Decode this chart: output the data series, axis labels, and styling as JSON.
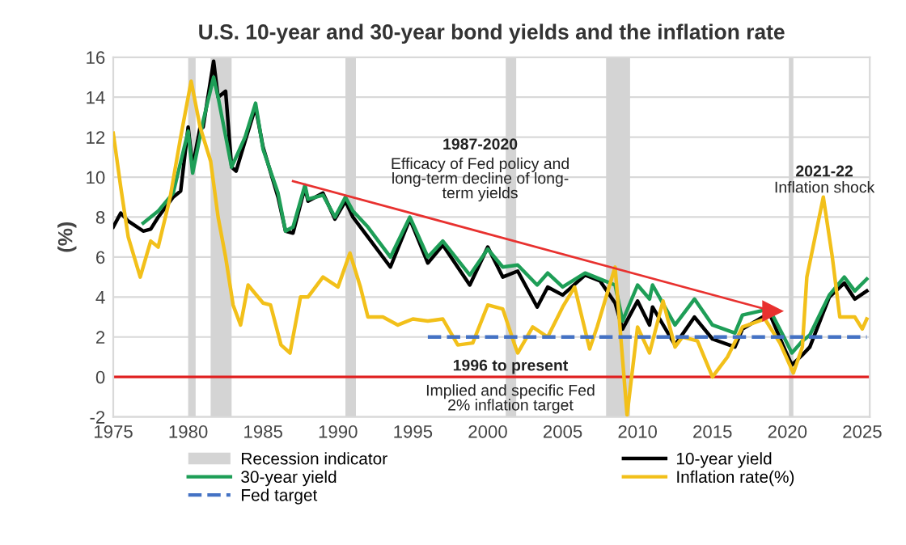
{
  "chart_data": {
    "type": "line",
    "title": "U.S. 10-year and 30-year bond yields and the inflation rate",
    "ylabel": "(%)",
    "xlim": [
      1975,
      2025.5
    ],
    "xticks": [
      1975,
      1980,
      1985,
      1990,
      1995,
      2000,
      2005,
      2010,
      2015,
      2020,
      2025
    ],
    "ylim": [
      -2,
      16
    ],
    "yticks": [
      -2,
      0,
      2,
      4,
      6,
      8,
      10,
      12,
      14,
      16
    ],
    "grid": "y",
    "legend": "bottom",
    "series": [
      {
        "name": "10-year yield",
        "color": "#000000",
        "x": [
          1975,
          1975.5,
          1976,
          1977,
          1977.5,
          1978,
          1979,
          1979.5,
          1980.0,
          1980.3,
          1980.8,
          1981.0,
          1981.7,
          1982,
          1982.5,
          1982.9,
          1983.2,
          1983.8,
          1984.5,
          1985,
          1986,
          1986.5,
          1987,
          1987.8,
          1988,
          1989,
          1989.8,
          1990.5,
          1991,
          1992,
          1993.5,
          1994.8,
          1996,
          1997,
          1998.8,
          2000,
          2001,
          2002,
          2003.3,
          2004,
          2005,
          2006.5,
          2007.5,
          2008.5,
          2009,
          2010,
          2010.8,
          2011,
          2012.5,
          2013.8,
          2015,
          2016.5,
          2017,
          2018.8,
          2019.7,
          2020.3,
          2021,
          2021.5,
          2022.8,
          2023.8,
          2024.5,
          2025.3
        ],
        "values": [
          7.5,
          8.2,
          7.8,
          7.3,
          7.4,
          8.0,
          9.0,
          9.3,
          12.5,
          10.5,
          12.5,
          12.5,
          15.8,
          14.0,
          14.3,
          10.5,
          10.3,
          11.8,
          13.5,
          11.5,
          9.0,
          7.3,
          7.2,
          9.5,
          8.8,
          9.2,
          7.9,
          8.8,
          8.0,
          7.0,
          5.5,
          7.9,
          5.7,
          6.6,
          4.6,
          6.5,
          5.0,
          5.3,
          3.5,
          4.5,
          4.1,
          5.1,
          4.8,
          3.7,
          2.4,
          3.8,
          2.6,
          3.5,
          1.6,
          3.0,
          1.9,
          1.5,
          2.4,
          3.2,
          1.6,
          0.6,
          1.1,
          1.5,
          4.0,
          4.7,
          3.9,
          4.3
        ]
      },
      {
        "name": "30-year yield",
        "color": "#1e9e57",
        "x": [
          1977,
          1978,
          1979,
          1980,
          1980.3,
          1981,
          1981.7,
          1982,
          1982.9,
          1983.8,
          1984.5,
          1985,
          1986,
          1986.5,
          1987,
          1987.8,
          1988,
          1989,
          1989.8,
          1990.5,
          1991,
          1992,
          1993.5,
          1994.8,
          1996,
          1997,
          1998.8,
          2000,
          2001,
          2002,
          2003.3,
          2004,
          2005,
          2006.5,
          2007.5,
          2008.5,
          2009,
          2010,
          2010.8,
          2011,
          2012.5,
          2013.8,
          2015,
          2016.5,
          2017,
          2018.8,
          2019.7,
          2020.3,
          2021,
          2021.5,
          2022.8,
          2023.8,
          2024.5,
          2025.3
        ],
        "values": [
          7.7,
          8.3,
          9.2,
          12.3,
          10.2,
          12.8,
          15.0,
          14.0,
          10.5,
          12.0,
          13.7,
          11.4,
          9.2,
          7.3,
          7.5,
          9.6,
          8.9,
          9.1,
          8.0,
          9.0,
          8.3,
          7.5,
          6.0,
          8.0,
          6.0,
          6.8,
          5.1,
          6.4,
          5.5,
          5.6,
          4.6,
          5.2,
          4.5,
          5.2,
          4.9,
          4.6,
          2.8,
          4.6,
          3.9,
          4.6,
          2.6,
          3.9,
          2.6,
          2.2,
          3.1,
          3.4,
          2.1,
          1.2,
          1.8,
          2.1,
          4.1,
          5.0,
          4.3,
          4.9
        ]
      },
      {
        "name": "Inflation rate(%)",
        "color": "#f2c01a",
        "x": [
          1975,
          1975.5,
          1976,
          1976.8,
          1977.5,
          1978,
          1978.8,
          1979.5,
          1980.2,
          1980.8,
          1981.5,
          1982,
          1982.5,
          1983,
          1983.5,
          1984,
          1985,
          1985.5,
          1986.2,
          1986.8,
          1987.5,
          1988,
          1989,
          1990,
          1990.8,
          1991.5,
          1992,
          1993,
          1994,
          1995,
          1996,
          1997,
          1998,
          1999,
          2000,
          2001,
          2001.8,
          2002,
          2003,
          2004,
          2005,
          2005.8,
          2006.8,
          2007.3,
          2008.5,
          2009.3,
          2010,
          2010.8,
          2011.7,
          2012.5,
          2013,
          2014,
          2015,
          2016,
          2017,
          2018.5,
          2019.5,
          2020.4,
          2021,
          2021.3,
          2022.4,
          2023,
          2023.5,
          2024.5,
          2025,
          2025.3
        ],
        "values": [
          12.2,
          9.5,
          7.0,
          5.0,
          6.8,
          6.5,
          9.0,
          12.0,
          14.8,
          12.5,
          10.8,
          8.0,
          6.0,
          3.6,
          2.6,
          4.6,
          3.7,
          3.6,
          1.6,
          1.2,
          4.0,
          4.0,
          5.0,
          4.5,
          6.2,
          4.5,
          3.0,
          3.0,
          2.6,
          2.9,
          2.8,
          2.9,
          1.6,
          1.7,
          3.6,
          3.4,
          1.6,
          1.2,
          2.5,
          2.0,
          3.5,
          4.5,
          1.4,
          2.5,
          5.5,
          -1.9,
          2.5,
          1.2,
          3.8,
          1.5,
          2.0,
          1.8,
          0.0,
          1.0,
          2.5,
          2.9,
          1.7,
          0.2,
          1.5,
          5.0,
          9.0,
          6.0,
          3.0,
          3.0,
          2.4,
          2.9
        ]
      },
      {
        "name": "Fed target",
        "color": "#4472c4",
        "line_style": "dashed",
        "x": [
          1996,
          2025.3
        ],
        "values": [
          2,
          2
        ]
      },
      {
        "color": "#e8312f",
        "marker": "triangle",
        "x": [
          1987,
          2019
        ],
        "values": [
          9.8,
          3.3
        ]
      }
    ],
    "bands": [
      {
        "axis": "x",
        "from": 1980.0,
        "to": 1980.5,
        "label": "Recession indicator",
        "color": "#d4d4d4"
      },
      {
        "axis": "x",
        "from": 1981.5,
        "to": 1982.9,
        "color": "#d4d4d4"
      },
      {
        "axis": "x",
        "from": 1990.5,
        "to": 1991.2,
        "color": "#d4d4d4"
      },
      {
        "axis": "x",
        "from": 2001.2,
        "to": 2001.9,
        "color": "#d4d4d4"
      },
      {
        "axis": "x",
        "from": 2007.9,
        "to": 2009.5,
        "color": "#d4d4d4"
      },
      {
        "axis": "x",
        "from": 2020.1,
        "to": 2020.4,
        "color": "#d4d4d4"
      }
    ],
    "ref_lines": [
      {
        "axis": "y",
        "value": 0,
        "color": "#e02020"
      }
    ],
    "annotations": [
      "1987-2020",
      "Efficacy of Fed policy and\nlong-term decline of long-\nterm yields",
      "2021-22",
      "Inflation shock",
      "1996 to present",
      "Implied and specific Fed\n2% inflation target"
    ]
  }
}
